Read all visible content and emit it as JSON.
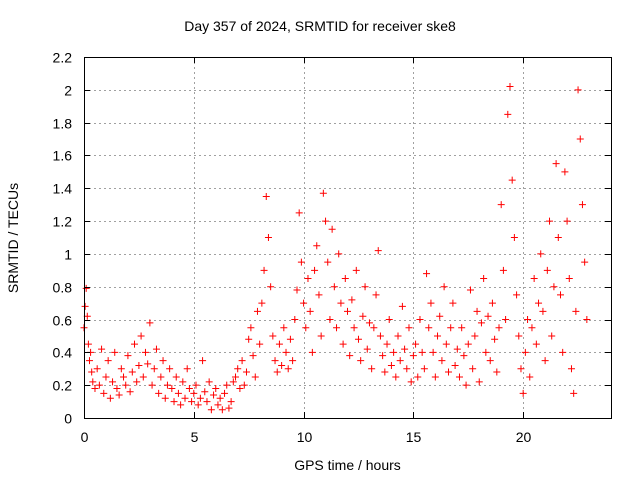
{
  "chart_data": {
    "type": "scatter",
    "title": "Day 357 of 2024, SRMTID for receiver ske8",
    "xlabel": "GPS time / hours",
    "ylabel": "SRMTID / TECUs",
    "xlim": [
      0,
      24
    ],
    "ylim": [
      0,
      2.2
    ],
    "xticks": [
      0,
      5,
      10,
      15,
      20
    ],
    "yticks": [
      0,
      0.2,
      0.4,
      0.6,
      0.8,
      1,
      1.2,
      1.4,
      1.6,
      1.8,
      2,
      2.2
    ],
    "xtick_labels": [
      "0",
      "5",
      "10",
      "15",
      "20"
    ],
    "ytick_labels": [
      "0",
      "0.2",
      "0.4",
      "0.6",
      "0.8",
      "1",
      "1.2",
      "1.4",
      "1.6",
      "1.8",
      "2",
      "2.2"
    ],
    "grid": true,
    "marker": "plus",
    "series": [
      {
        "name": "SRMTID",
        "color": "#ff0000",
        "x": [
          0.0,
          0.05,
          0.1,
          0.15,
          0.2,
          0.25,
          0.3,
          0.35,
          0.4,
          0.5,
          0.6,
          0.7,
          0.8,
          0.9,
          1.0,
          1.1,
          1.2,
          1.3,
          1.4,
          1.5,
          1.6,
          1.7,
          1.8,
          1.9,
          2.0,
          2.1,
          2.2,
          2.3,
          2.4,
          2.5,
          2.6,
          2.7,
          2.8,
          2.9,
          3.0,
          3.1,
          3.2,
          3.3,
          3.4,
          3.5,
          3.6,
          3.7,
          3.8,
          3.9,
          4.0,
          4.1,
          4.2,
          4.3,
          4.4,
          4.5,
          4.6,
          4.7,
          4.8,
          4.9,
          5.0,
          5.1,
          5.2,
          5.3,
          5.4,
          5.5,
          5.6,
          5.7,
          5.8,
          5.9,
          6.0,
          6.1,
          6.2,
          6.3,
          6.4,
          6.5,
          6.6,
          6.7,
          6.8,
          6.9,
          7.0,
          7.1,
          7.2,
          7.3,
          7.4,
          7.5,
          7.6,
          7.7,
          7.8,
          7.9,
          8.0,
          8.1,
          8.2,
          8.3,
          8.4,
          8.5,
          8.6,
          8.7,
          8.8,
          8.9,
          9.0,
          9.1,
          9.2,
          9.3,
          9.4,
          9.5,
          9.6,
          9.7,
          9.8,
          9.9,
          10.0,
          10.1,
          10.2,
          10.3,
          10.4,
          10.5,
          10.6,
          10.7,
          10.8,
          10.9,
          11.0,
          11.1,
          11.2,
          11.3,
          11.4,
          11.5,
          11.6,
          11.7,
          11.8,
          11.9,
          12.0,
          12.1,
          12.2,
          12.3,
          12.4,
          12.5,
          12.6,
          12.7,
          12.8,
          12.9,
          13.0,
          13.1,
          13.2,
          13.3,
          13.4,
          13.5,
          13.6,
          13.7,
          13.8,
          13.9,
          14.0,
          14.1,
          14.2,
          14.3,
          14.4,
          14.5,
          14.6,
          14.7,
          14.8,
          14.9,
          15.0,
          15.1,
          15.2,
          15.3,
          15.4,
          15.5,
          15.6,
          15.7,
          15.8,
          15.9,
          16.0,
          16.1,
          16.2,
          16.3,
          16.4,
          16.5,
          16.6,
          16.7,
          16.8,
          16.9,
          17.0,
          17.1,
          17.2,
          17.3,
          17.4,
          17.5,
          17.6,
          17.7,
          17.8,
          17.9,
          18.0,
          18.1,
          18.2,
          18.3,
          18.4,
          18.5,
          18.6,
          18.7,
          18.8,
          18.9,
          19.0,
          19.1,
          19.2,
          19.3,
          19.4,
          19.5,
          19.6,
          19.7,
          19.8,
          19.9,
          20.0,
          20.1,
          20.2,
          20.3,
          20.4,
          20.5,
          20.6,
          20.7,
          20.8,
          20.9,
          21.0,
          21.1,
          21.2,
          21.3,
          21.4,
          21.5,
          21.6,
          21.7,
          21.8,
          21.9,
          22.0,
          22.1,
          22.2,
          22.3,
          22.4,
          22.5,
          22.6,
          22.7,
          22.8,
          22.9
        ],
        "y": [
          0.55,
          0.68,
          0.79,
          0.62,
          0.45,
          0.35,
          0.4,
          0.28,
          0.22,
          0.18,
          0.3,
          0.2,
          0.42,
          0.15,
          0.25,
          0.35,
          0.12,
          0.22,
          0.4,
          0.18,
          0.14,
          0.3,
          0.25,
          0.2,
          0.38,
          0.16,
          0.28,
          0.45,
          0.22,
          0.32,
          0.5,
          0.25,
          0.4,
          0.33,
          0.58,
          0.2,
          0.3,
          0.42,
          0.15,
          0.25,
          0.35,
          0.12,
          0.2,
          0.3,
          0.18,
          0.1,
          0.25,
          0.15,
          0.08,
          0.22,
          0.12,
          0.3,
          0.18,
          0.1,
          0.15,
          0.2,
          0.08,
          0.12,
          0.35,
          0.16,
          0.1,
          0.22,
          0.05,
          0.14,
          0.18,
          0.08,
          0.12,
          0.05,
          0.15,
          0.2,
          0.06,
          0.1,
          0.22,
          0.25,
          0.3,
          0.18,
          0.35,
          0.2,
          0.28,
          0.48,
          0.55,
          0.38,
          0.25,
          0.65,
          0.45,
          0.7,
          0.9,
          1.35,
          1.1,
          0.8,
          0.5,
          0.35,
          0.28,
          0.45,
          0.32,
          0.55,
          0.4,
          0.3,
          0.48,
          0.35,
          0.6,
          0.78,
          1.25,
          0.95,
          0.7,
          0.55,
          0.85,
          0.65,
          0.4,
          0.9,
          1.05,
          0.75,
          0.5,
          1.37,
          1.2,
          0.95,
          0.6,
          1.15,
          0.8,
          0.55,
          1.0,
          0.7,
          0.45,
          0.85,
          0.65,
          0.38,
          0.72,
          0.55,
          0.9,
          0.48,
          0.35,
          0.62,
          0.8,
          0.42,
          0.58,
          0.3,
          0.55,
          0.75,
          1.02,
          0.5,
          0.38,
          0.28,
          0.45,
          0.6,
          0.32,
          0.4,
          0.25,
          0.5,
          0.35,
          0.68,
          0.42,
          0.3,
          0.55,
          0.22,
          0.38,
          0.45,
          0.25,
          0.6,
          0.4,
          0.3,
          0.88,
          0.55,
          0.7,
          0.4,
          0.25,
          0.5,
          0.62,
          0.35,
          0.8,
          0.45,
          0.28,
          0.55,
          0.7,
          0.32,
          0.42,
          0.25,
          0.55,
          0.38,
          0.2,
          0.45,
          0.78,
          0.3,
          0.5,
          0.65,
          0.22,
          0.58,
          0.85,
          0.4,
          0.62,
          0.35,
          0.7,
          0.48,
          0.28,
          0.55,
          1.3,
          0.9,
          0.6,
          1.85,
          2.02,
          1.45,
          1.1,
          0.75,
          0.5,
          0.3,
          0.15,
          0.4,
          0.6,
          0.25,
          0.55,
          0.85,
          0.45,
          0.7,
          1.0,
          0.65,
          0.35,
          0.9,
          1.2,
          0.5,
          0.8,
          1.55,
          1.1,
          0.75,
          0.4,
          1.5,
          1.2,
          0.85,
          0.3,
          0.15,
          0.65,
          2.0,
          1.7,
          1.3,
          0.95,
          0.6
        ]
      }
    ]
  }
}
